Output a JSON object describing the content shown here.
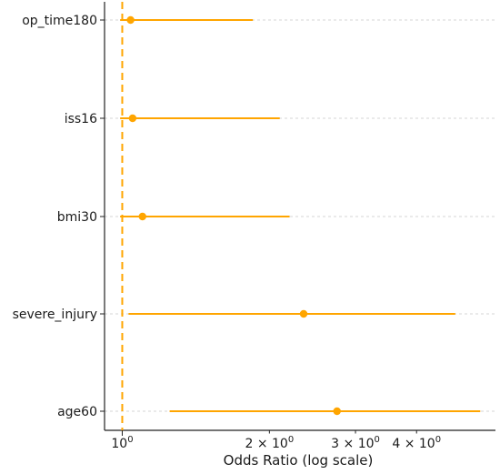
{
  "chart_data": {
    "type": "forest",
    "xlabel": "Odds Ratio (log scale)",
    "xscale": "log",
    "xlim": [
      0.92,
      5.8
    ],
    "grid": "horizontal dashed",
    "reference_line": {
      "x": 1,
      "style": "dashed",
      "color": "#FFA500"
    },
    "x_ticks": [
      {
        "value": 1,
        "label": "10",
        "exp": "0"
      },
      {
        "value": 2,
        "label": "2 × 10",
        "exp": "0"
      },
      {
        "value": 3,
        "label": "3 × 10",
        "exp": "0"
      },
      {
        "value": 4,
        "label": "4 × 10",
        "exp": "0"
      }
    ],
    "categories": [
      "op_time180",
      "iss16",
      "bmi30",
      "severe_injury",
      "age60"
    ],
    "estimates": [
      {
        "label": "op_time180",
        "or": 1.04,
        "ci_low": 0.99,
        "ci_high": 1.85
      },
      {
        "label": "iss16",
        "or": 1.05,
        "ci_low": 0.99,
        "ci_high": 2.1
      },
      {
        "label": "bmi30",
        "or": 1.1,
        "ci_low": 0.99,
        "ci_high": 2.2
      },
      {
        "label": "severe_injury",
        "or": 2.35,
        "ci_low": 1.03,
        "ci_high": 4.8
      },
      {
        "label": "age60",
        "or": 2.75,
        "ci_low": 1.25,
        "ci_high": 5.4
      }
    ],
    "color": "#FFA500"
  }
}
